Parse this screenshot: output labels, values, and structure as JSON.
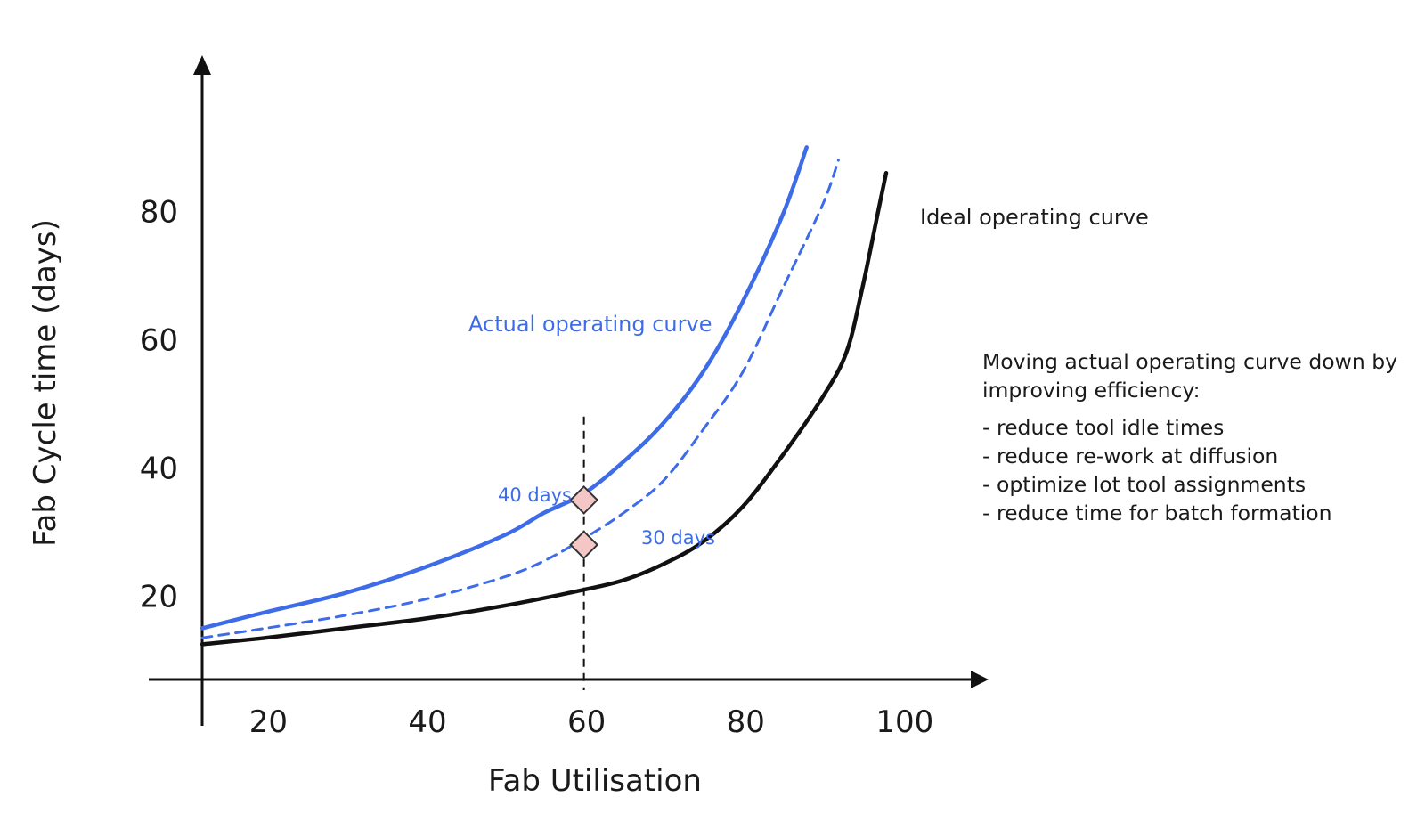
{
  "chart_data": {
    "type": "line",
    "title": "",
    "xlabel": "Fab Utilisation",
    "ylabel": "Fab Cycle time (days)",
    "xlim": [
      12,
      112
    ],
    "ylim": [
      7,
      100
    ],
    "x_ticks": [
      {
        "value": 20,
        "label": "20"
      },
      {
        "value": 40,
        "label": "40"
      },
      {
        "value": 60,
        "label": "60"
      },
      {
        "value": 80,
        "label": "80"
      },
      {
        "value": 100,
        "label": "100"
      }
    ],
    "y_ticks": [
      {
        "value": 20,
        "label": "20"
      },
      {
        "value": 40,
        "label": "40"
      },
      {
        "value": 60,
        "label": "60"
      },
      {
        "value": 80,
        "label": "80"
      }
    ],
    "grid": false,
    "series": [
      {
        "name": "Actual operating curve",
        "color": "#3e6be8",
        "style": "solid",
        "points": [
          [
            12,
            15
          ],
          [
            20,
            17.5
          ],
          [
            30,
            20.5
          ],
          [
            40,
            24.5
          ],
          [
            50,
            29.5
          ],
          [
            55,
            33
          ],
          [
            60,
            36
          ],
          [
            65,
            41
          ],
          [
            70,
            47
          ],
          [
            75,
            55
          ],
          [
            80,
            66
          ],
          [
            85,
            79.5
          ],
          [
            88,
            90
          ]
        ]
      },
      {
        "name": "",
        "color": "#3e6be8",
        "style": "dashed",
        "points": [
          [
            12,
            13.5
          ],
          [
            20,
            15
          ],
          [
            30,
            17
          ],
          [
            40,
            19.5
          ],
          [
            50,
            23
          ],
          [
            55,
            25.5
          ],
          [
            60,
            29
          ],
          [
            65,
            33
          ],
          [
            70,
            38
          ],
          [
            75,
            46
          ],
          [
            80,
            55
          ],
          [
            85,
            68
          ],
          [
            90,
            81
          ],
          [
            92,
            88
          ]
        ]
      },
      {
        "name": "Ideal operating curve",
        "color": "#111111",
        "style": "solid",
        "points": [
          [
            12,
            12.5
          ],
          [
            20,
            13.5
          ],
          [
            30,
            15
          ],
          [
            40,
            16.5
          ],
          [
            50,
            18.5
          ],
          [
            60,
            21
          ],
          [
            65,
            22.5
          ],
          [
            70,
            25
          ],
          [
            75,
            28.5
          ],
          [
            80,
            34
          ],
          [
            85,
            42
          ],
          [
            90,
            51
          ],
          [
            93,
            58
          ],
          [
            95,
            68
          ],
          [
            97,
            80
          ],
          [
            98,
            86
          ]
        ]
      }
    ],
    "reference_line": {
      "x": 60,
      "y_from": 7,
      "y_to": 48,
      "style": "dashed",
      "color": "#111111"
    },
    "markers": [
      {
        "x": 60,
        "y": 35,
        "label": "40 days",
        "color": "#f5c6c6",
        "stroke": "#333333"
      },
      {
        "x": 60,
        "y": 28,
        "label": "30 days",
        "color": "#f5c6c6",
        "stroke": "#333333"
      }
    ],
    "annotations": {
      "actual_label": "Actual operating curve",
      "ideal_label": "Ideal operating curve"
    }
  },
  "note": {
    "heading": "Moving actual operating curve down by improving efficiency:",
    "items": [
      "- reduce tool idle times",
      "- reduce re-work at diffusion",
      "- optimize lot tool assignments",
      "- reduce time for batch formation"
    ]
  }
}
